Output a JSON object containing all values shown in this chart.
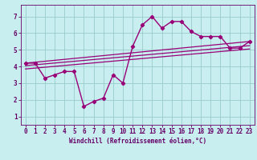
{
  "xlabel": "Windchill (Refroidissement éolien,°C)",
  "bg_color": "#c8eef0",
  "line_color": "#990077",
  "marker_color": "#990077",
  "xlim": [
    -0.5,
    23.5
  ],
  "ylim": [
    0.5,
    7.7
  ],
  "yticks": [
    1,
    2,
    3,
    4,
    5,
    6,
    7
  ],
  "xticks": [
    0,
    1,
    2,
    3,
    4,
    5,
    6,
    7,
    8,
    9,
    10,
    11,
    12,
    13,
    14,
    15,
    16,
    17,
    18,
    19,
    20,
    21,
    22,
    23
  ],
  "series1_x": [
    0,
    1,
    2,
    3,
    4,
    5,
    6,
    7,
    8,
    9,
    10,
    11,
    12,
    13,
    14,
    15,
    16,
    17,
    18,
    19,
    20,
    21,
    22,
    23
  ],
  "series1_y": [
    4.2,
    4.2,
    3.3,
    3.5,
    3.7,
    3.7,
    1.6,
    1.9,
    2.1,
    3.5,
    3.0,
    5.2,
    6.5,
    7.0,
    6.3,
    6.7,
    6.7,
    6.1,
    5.8,
    5.8,
    5.8,
    5.1,
    5.1,
    5.5
  ],
  "trends": [
    {
      "x": [
        0,
        23
      ],
      "y": [
        4.2,
        5.5
      ]
    },
    {
      "x": [
        0,
        23
      ],
      "y": [
        4.05,
        5.25
      ]
    },
    {
      "x": [
        0,
        23
      ],
      "y": [
        3.85,
        5.05
      ]
    }
  ],
  "grid_color": "#99cccc",
  "font_color": "#660066",
  "xlabel_fontsize": 5.5,
  "tick_fontsize": 5.5
}
